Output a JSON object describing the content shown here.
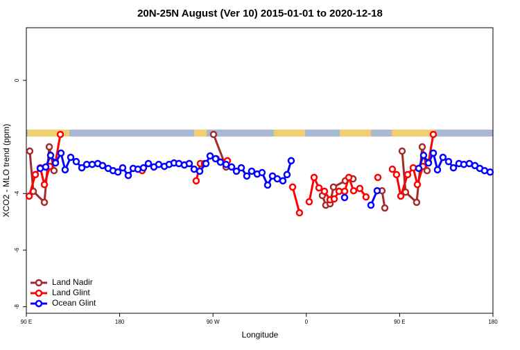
{
  "chart_data": {
    "type": "line",
    "title": "20N-25N August (Ver 10)   2015-01-01 to 2020-12-18",
    "x_label": "Longitude",
    "y_label": "XCO2 - MLO trend (ppm)",
    "xlim": [
      90,
      540
    ],
    "ylim": [
      -8.23,
      1.86
    ],
    "xticks": [
      {
        "value": 90,
        "label": "90 E"
      },
      180,
      {
        "value": 270,
        "label": "90 W"
      },
      {
        "value": 360,
        "label": "0"
      },
      {
        "value": 450,
        "label": "90 E"
      },
      {
        "value": 540,
        "label": "180"
      }
    ],
    "yticks": [
      0,
      -4,
      -6,
      -8
    ],
    "legend": "bottomleft",
    "series": [
      {
        "name": "Land Nadir",
        "color": "#a52a2a",
        "x": [
          93.3,
          96.7,
          107.4,
          112.1,
          116.7,
          null,
          270.5,
          282.6,
          null,
          375.5,
          378.8,
          382.9,
          386.2,
          397.6,
          405.0,
          null,
          433.0,
          435.7,
          null,
          452.4,
          455.7,
          466.4,
          471.8,
          476.5
        ],
        "values": [
          -2.5,
          -3.92,
          -4.31,
          -2.35,
          -3.19,
          null,
          -1.91,
          -3.06,
          null,
          -4.07,
          -4.41,
          -4.36,
          -3.77,
          -3.55,
          -3.48,
          null,
          -3.9,
          -4.51,
          null,
          -2.5,
          -3.95,
          -4.31,
          -2.35,
          -3.19
        ]
      },
      {
        "name": "Land Glint",
        "color": "#ff0000",
        "x": [
          92.7,
          98.7,
          103.4,
          107.4,
          112.7,
          118.1,
          122.8,
          null,
          201.7,
          null,
          253.8,
          257.8,
          261.8,
          null,
          273.2,
          283.9,
          null,
          346.8,
          353.4,
          null,
          362.8,
          367.5,
          372.2,
          377.5,
          382.9,
          386.9,
          391.6,
          397.0,
          401.0,
          405.6,
          411.6,
          417.6,
          null,
          429.0,
          null,
          443.0,
          447.0,
          451.1,
          457.7,
          463.1,
          467.1,
          472.5,
          477.8,
          482.5
        ],
        "values": [
          -4.09,
          -3.33,
          -3.09,
          -3.68,
          -3.04,
          -2.89,
          -1.91,
          null,
          -3.19,
          null,
          -3.55,
          -2.94,
          -2.94,
          null,
          -2.77,
          -2.84,
          null,
          -3.77,
          -4.68,
          null,
          -4.29,
          -3.43,
          -3.8,
          -3.92,
          -4.22,
          -4.19,
          -3.92,
          -3.92,
          -3.43,
          -3.9,
          -3.82,
          -4.12,
          null,
          -3.43,
          null,
          -3.14,
          -3.33,
          -4.09,
          -3.33,
          -3.09,
          -3.68,
          -3.04,
          -2.89,
          -1.91
        ]
      },
      {
        "name": "Ocean Glint",
        "color": "#0000ff",
        "x": [
          103.4,
          108.7,
          113.4,
          118.1,
          123.4,
          127.4,
          132.8,
          138.1,
          143.5,
          148.2,
          153.5,
          158.9,
          163.5,
          168.9,
          173.6,
          178.3,
          182.9,
          188.3,
          193.0,
          197.6,
          203.0,
          207.7,
          213.0,
          217.7,
          223.1,
          227.7,
          232.4,
          237.1,
          242.4,
          247.1,
          251.8,
          257.2,
          263.2,
          267.2,
          272.5,
          277.2,
          282.6,
          287.9,
          292.6,
          297.3,
          302.6,
          307.3,
          312.6,
          317.3,
          322.7,
          327.4,
          332.0,
          337.4,
          341.4,
          345.4,
          null,
          396.9,
          null,
          422.3,
          428.3,
          null,
          468.4,
          473.1,
          477.8,
          482.5,
          486.5,
          491.8,
          497.2,
          501.9,
          507.2,
          511.9,
          517.2,
          522.6,
          527.3,
          531.9,
          537.3
        ],
        "values": [
          -3.11,
          -3.06,
          -2.65,
          -2.92,
          -2.57,
          -3.16,
          -2.72,
          -2.87,
          -3.09,
          -2.97,
          -2.97,
          -2.94,
          -3.01,
          -3.11,
          -3.19,
          -3.24,
          -3.09,
          -3.36,
          -3.11,
          -3.14,
          -3.09,
          -2.94,
          -3.06,
          -2.97,
          -3.04,
          -2.97,
          -2.92,
          -2.94,
          -2.99,
          -2.94,
          -3.14,
          -3.21,
          -2.94,
          -2.67,
          -2.77,
          -2.89,
          -2.97,
          -3.06,
          -3.21,
          -3.09,
          -3.38,
          -3.21,
          -3.31,
          -3.26,
          -3.7,
          -3.38,
          -3.48,
          -3.55,
          -3.33,
          -2.84,
          null,
          -4.14,
          null,
          -4.41,
          -3.9,
          null,
          -3.11,
          -2.65,
          -2.92,
          -2.57,
          -3.16,
          -2.72,
          -2.87,
          -3.09,
          -2.94,
          -2.97,
          -2.94,
          -3.01,
          -3.11,
          -3.19,
          -3.24
        ]
      }
    ]
  }
}
